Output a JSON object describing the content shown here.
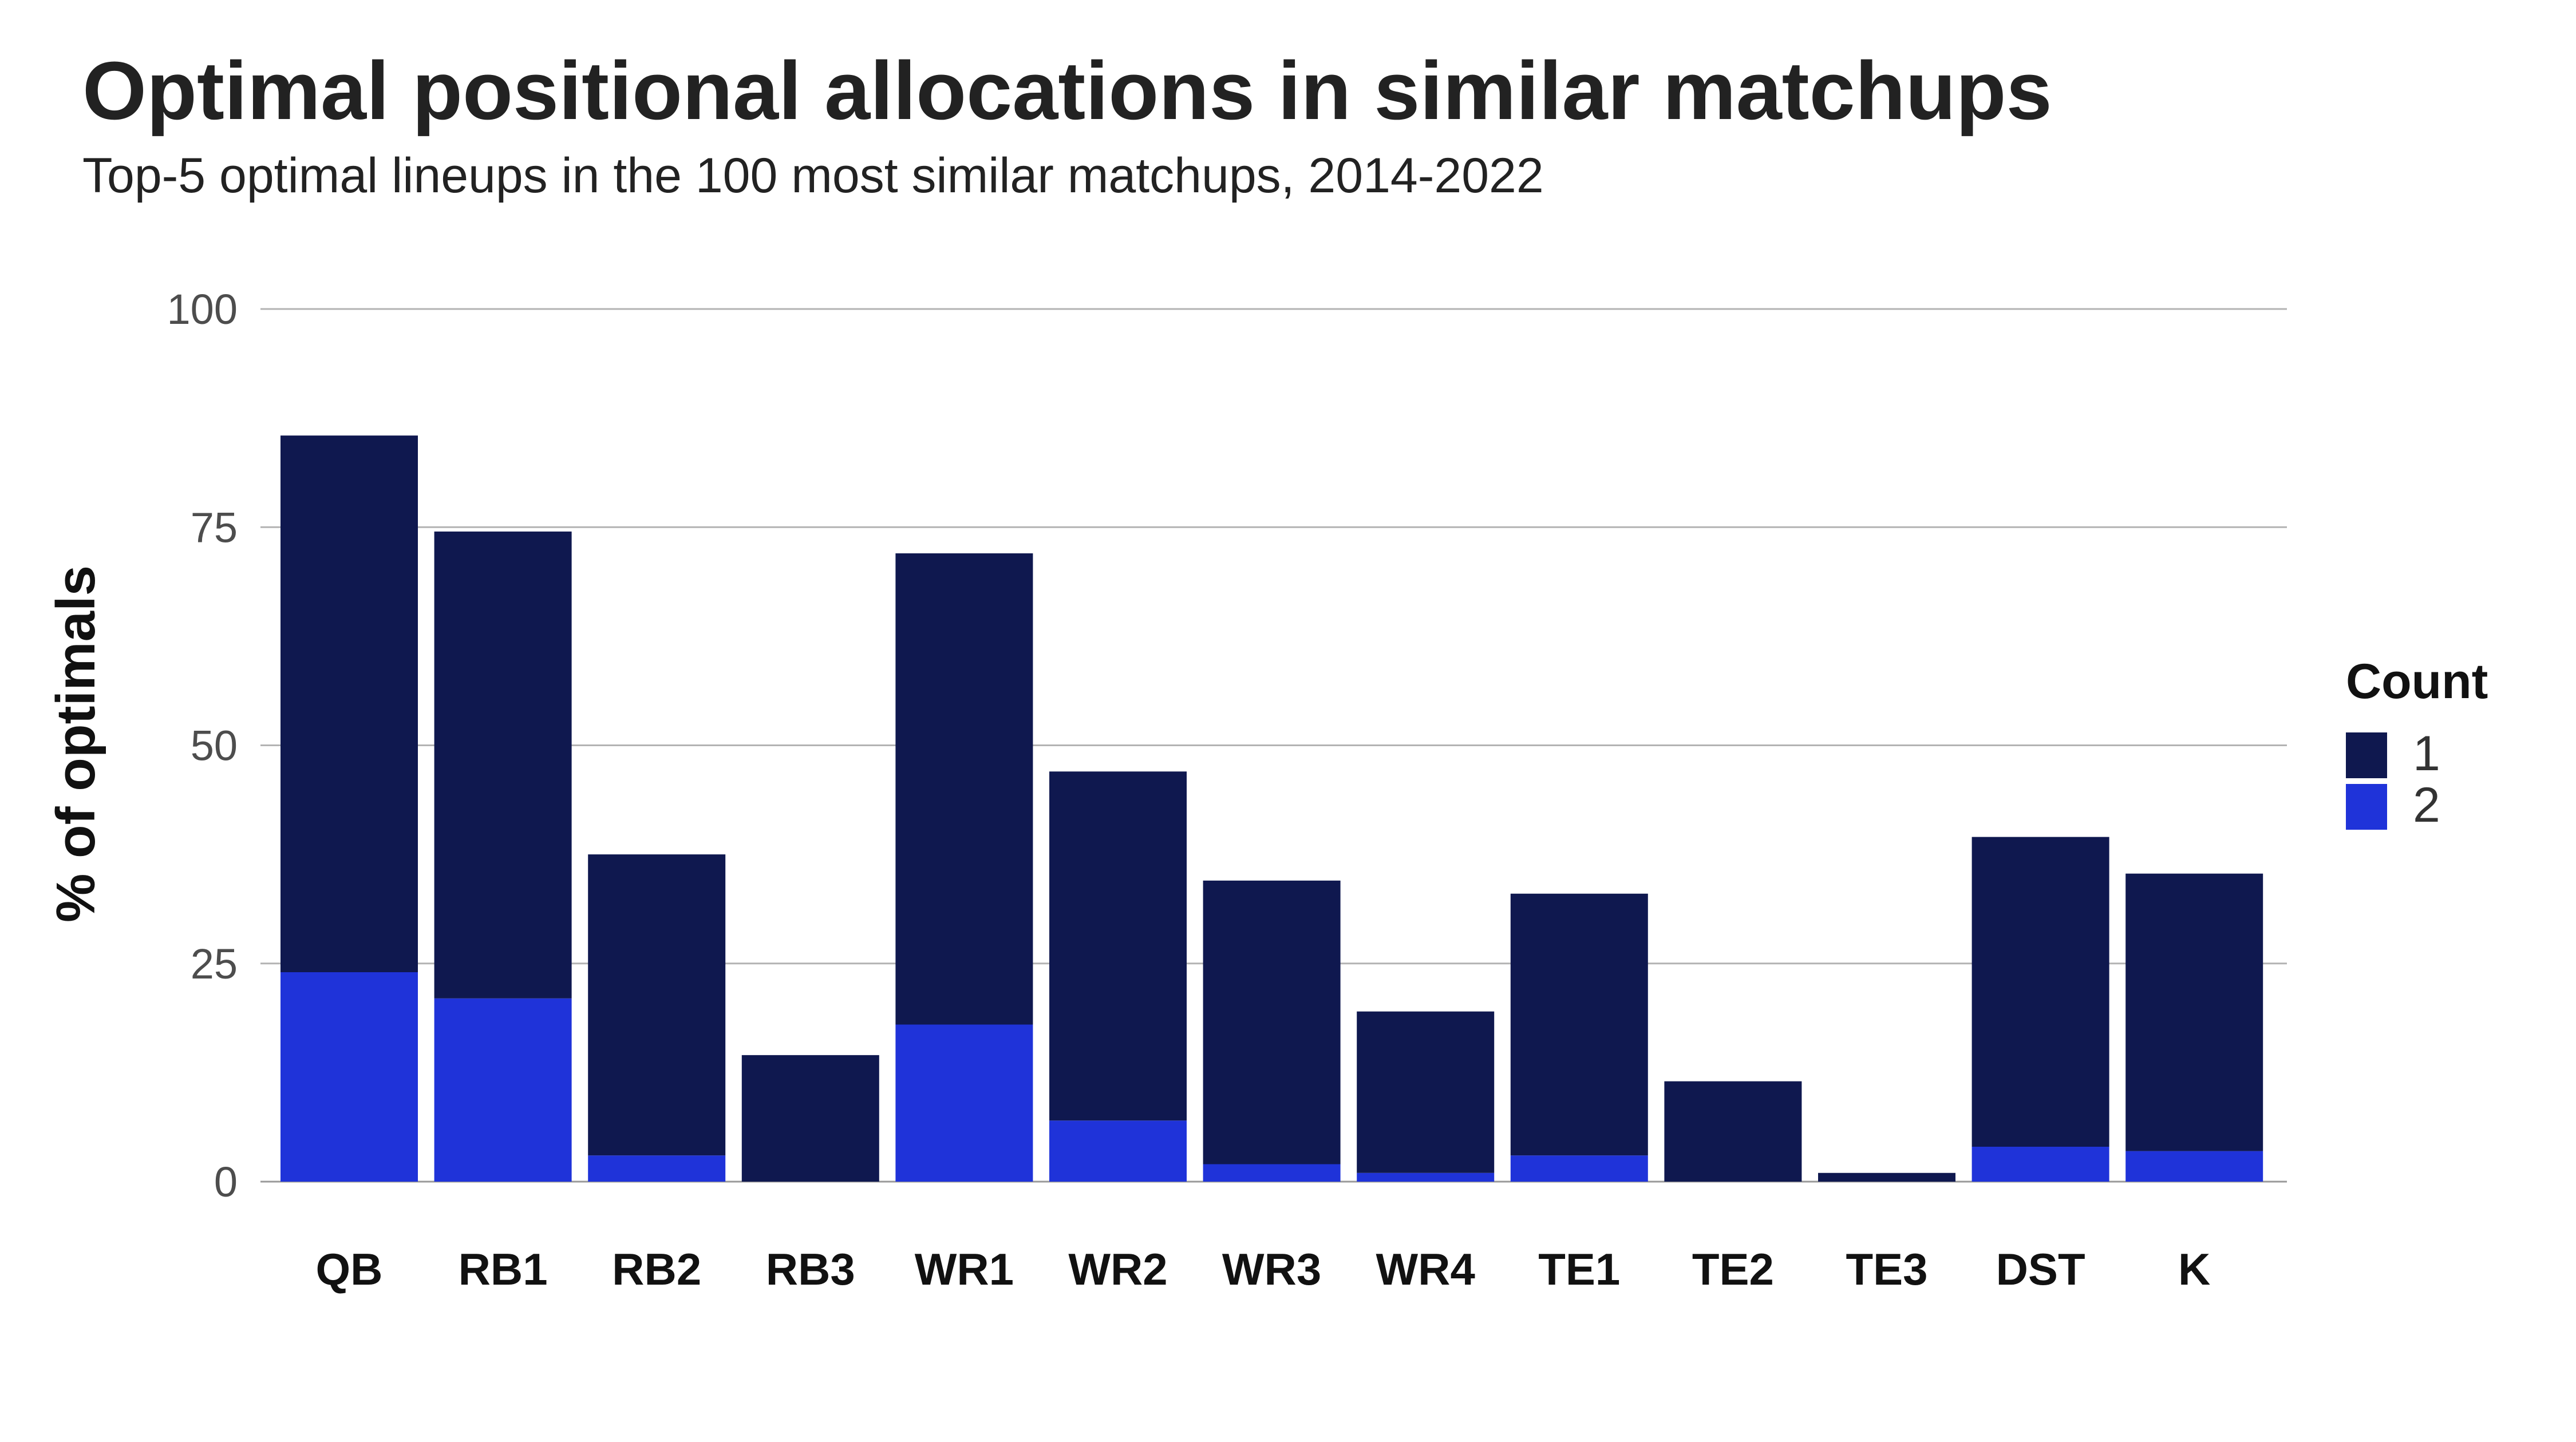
{
  "chart_data": {
    "type": "bar",
    "stacked": true,
    "title": "Optimal positional allocations in similar matchups",
    "subtitle": "Top-5 optimal lineups in the 100 most similar matchups, 2014-2022",
    "xlabel": "",
    "ylabel": "% of optimals",
    "ylim": [
      0,
      100
    ],
    "yticks": [
      0,
      25,
      50,
      75,
      100
    ],
    "grid": true,
    "legend": {
      "title": "Count",
      "placement": "right"
    },
    "categories": [
      "QB",
      "RB1",
      "RB2",
      "RB3",
      "WR1",
      "WR2",
      "WR3",
      "WR4",
      "TE1",
      "TE2",
      "TE3",
      "DST",
      "K"
    ],
    "series": [
      {
        "name": "2",
        "color": "#1f33d9",
        "values": [
          24,
          21,
          3,
          0,
          18,
          7,
          2,
          1,
          3,
          0,
          0,
          4,
          3.5
        ]
      },
      {
        "name": "1",
        "color": "#0f184f",
        "values": [
          61.5,
          53.5,
          34.5,
          14.5,
          54,
          40,
          32.5,
          18.5,
          30,
          11.5,
          1,
          35.5,
          31.8
        ]
      }
    ]
  }
}
